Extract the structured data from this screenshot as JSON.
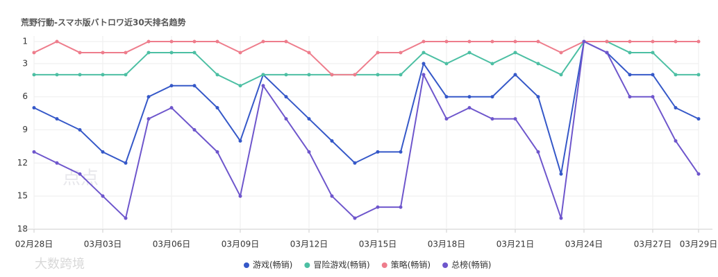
{
  "chart_data": {
    "type": "line",
    "title": "荒野行動-スマホ版バトロワ近30天排名趋势",
    "categories": [
      "02月28日",
      null,
      null,
      "03月03日",
      null,
      null,
      "03月06日",
      null,
      null,
      "03月09日",
      null,
      null,
      "03月12日",
      null,
      null,
      "03月15日",
      null,
      null,
      "03月18日",
      null,
      null,
      "03月21日",
      null,
      null,
      "03月24日",
      null,
      null,
      "03月27日",
      null,
      "03月29日"
    ],
    "series": [
      {
        "name": "游戏(畅销)",
        "color": "#3558c8",
        "values": [
          7,
          8,
          9,
          11,
          12,
          6,
          5,
          5,
          7,
          10,
          4,
          6,
          8,
          10,
          12,
          11,
          11,
          3,
          6,
          6,
          6,
          4,
          6,
          13,
          1,
          2,
          4,
          4,
          7,
          8
        ]
      },
      {
        "name": "冒险游戏(畅销)",
        "color": "#4cbfa3",
        "values": [
          4,
          4,
          4,
          4,
          4,
          2,
          2,
          2,
          4,
          5,
          4,
          4,
          4,
          4,
          4,
          4,
          4,
          2,
          3,
          2,
          3,
          2,
          3,
          4,
          1,
          1,
          2,
          2,
          4,
          4
        ]
      },
      {
        "name": "策略(畅销)",
        "color": "#ee7d8c",
        "values": [
          2,
          1,
          2,
          2,
          2,
          1,
          1,
          1,
          1,
          2,
          1,
          1,
          2,
          4,
          4,
          2,
          2,
          1,
          1,
          1,
          1,
          1,
          1,
          2,
          1,
          1,
          1,
          1,
          1,
          1
        ]
      },
      {
        "name": "总榜(畅销)",
        "color": "#6e56cc",
        "values": [
          11,
          12,
          13,
          15,
          17,
          8,
          7,
          9,
          11,
          15,
          5,
          8,
          11,
          15,
          17,
          16,
          16,
          4,
          8,
          7,
          8,
          8,
          11,
          17,
          1,
          2,
          6,
          6,
          10,
          13
        ]
      }
    ],
    "ylim": [
      1,
      18
    ],
    "yticks": [
      1,
      3,
      6,
      9,
      12,
      15,
      18
    ],
    "y_reversed": true,
    "grid": true,
    "watermarks": [
      "点点",
      "大数跨境"
    ]
  }
}
